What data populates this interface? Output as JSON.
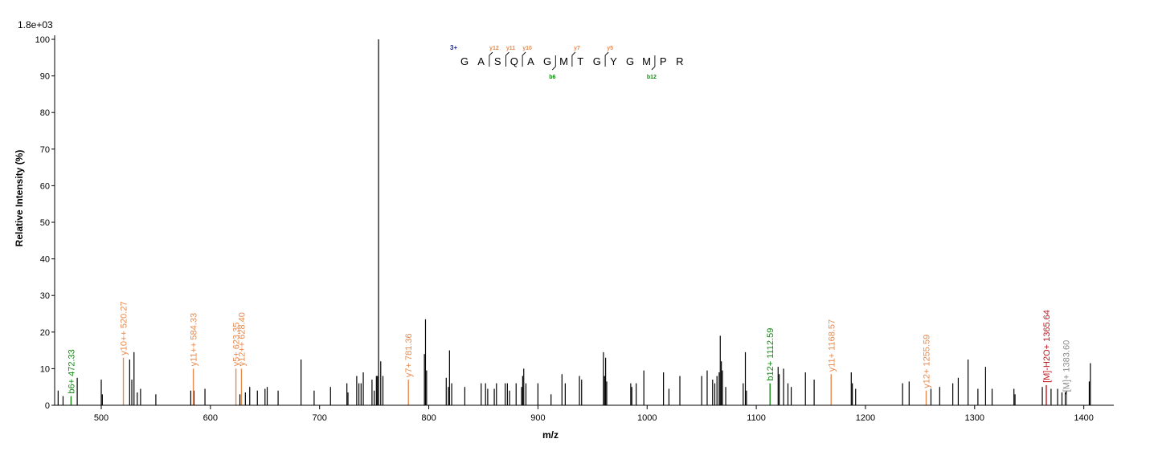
{
  "colors": {
    "b_ion": "#138a13",
    "y_ion": "#e88a4e",
    "precursor_loss": "#c0141c",
    "precursor": "#8c8c8c",
    "charge": "#1a2a9a",
    "peak": "#000000"
  },
  "chart_data": {
    "type": "bar",
    "intensity_scale": "1.8e+03",
    "xlabel": "m/z",
    "ylabel": "Relative   Intensity (%)",
    "xlim": [
      460,
      1430
    ],
    "ylim": [
      0,
      100
    ],
    "xticks": [
      500,
      600,
      700,
      800,
      900,
      1000,
      1100,
      1200,
      1300,
      1400
    ],
    "yticks": [
      0,
      10,
      20,
      30,
      40,
      50,
      60,
      70,
      80,
      90,
      100
    ],
    "peaks": [
      [
        460.5,
        4
      ],
      [
        465,
        2.5
      ],
      [
        478,
        7.5
      ],
      [
        500,
        7
      ],
      [
        501,
        3
      ],
      [
        526,
        12.5
      ],
      [
        528,
        7
      ],
      [
        530,
        14.5
      ],
      [
        533,
        3.5
      ],
      [
        536,
        4.5
      ],
      [
        550,
        3
      ],
      [
        582,
        4
      ],
      [
        585,
        4
      ],
      [
        595,
        4.5
      ],
      [
        627,
        3
      ],
      [
        632,
        3.5
      ],
      [
        636,
        5
      ],
      [
        643,
        4
      ],
      [
        650,
        4.5
      ],
      [
        652,
        5
      ],
      [
        662,
        4
      ],
      [
        683,
        12.5
      ],
      [
        695,
        4
      ],
      [
        710,
        5
      ],
      [
        725,
        6
      ],
      [
        726,
        3.5
      ],
      [
        734,
        8
      ],
      [
        736,
        6
      ],
      [
        738,
        6
      ],
      [
        740,
        9
      ],
      [
        748,
        7
      ],
      [
        750,
        4
      ],
      [
        752,
        8
      ],
      [
        753,
        8
      ],
      [
        754,
        100
      ],
      [
        756,
        12
      ],
      [
        758,
        8
      ],
      [
        796,
        14
      ],
      [
        797,
        23.5
      ],
      [
        798,
        9.5
      ],
      [
        816,
        7.5
      ],
      [
        818,
        5
      ],
      [
        819,
        15
      ],
      [
        821,
        6
      ],
      [
        833,
        5
      ],
      [
        848,
        6
      ],
      [
        852,
        6
      ],
      [
        854,
        4.5
      ],
      [
        860,
        4.5
      ],
      [
        862,
        6
      ],
      [
        870,
        6
      ],
      [
        872,
        6
      ],
      [
        874,
        4
      ],
      [
        880,
        6
      ],
      [
        885,
        5
      ],
      [
        886,
        8
      ],
      [
        887,
        10
      ],
      [
        889,
        6
      ],
      [
        900,
        6
      ],
      [
        912,
        3
      ],
      [
        922,
        8.5
      ],
      [
        925,
        6
      ],
      [
        938,
        8
      ],
      [
        940,
        7
      ],
      [
        960,
        14.5
      ],
      [
        961,
        8
      ],
      [
        962,
        13
      ],
      [
        963,
        6.5
      ],
      [
        985,
        6
      ],
      [
        986,
        5
      ],
      [
        990,
        6
      ],
      [
        997,
        9.5
      ],
      [
        1015,
        9
      ],
      [
        1020,
        4.5
      ],
      [
        1030,
        8
      ],
      [
        1050,
        8
      ],
      [
        1055,
        9.5
      ],
      [
        1060,
        7
      ],
      [
        1062,
        6
      ],
      [
        1064,
        8
      ],
      [
        1066,
        9
      ],
      [
        1067,
        19
      ],
      [
        1068,
        12
      ],
      [
        1069,
        9.5
      ],
      [
        1072,
        5
      ],
      [
        1088,
        6
      ],
      [
        1090,
        14.5
      ],
      [
        1091,
        4
      ],
      [
        1120,
        10.5
      ],
      [
        1121,
        8.5
      ],
      [
        1125,
        10
      ],
      [
        1129,
        6
      ],
      [
        1132,
        5
      ],
      [
        1145,
        9
      ],
      [
        1153,
        7
      ],
      [
        1187,
        9
      ],
      [
        1188,
        6
      ],
      [
        1191,
        4.5
      ],
      [
        1234,
        6
      ],
      [
        1240,
        6.5
      ],
      [
        1260,
        4.5
      ],
      [
        1268,
        5
      ],
      [
        1280,
        6
      ],
      [
        1285,
        7.5
      ],
      [
        1294,
        12.5
      ],
      [
        1303,
        4.5
      ],
      [
        1310,
        10.5
      ],
      [
        1316,
        4.5
      ],
      [
        1336,
        4.5
      ],
      [
        1337,
        3
      ],
      [
        1362,
        5
      ],
      [
        1370,
        4.5
      ],
      [
        1376,
        4.5
      ],
      [
        1380,
        3.5
      ],
      [
        1383,
        3.5
      ],
      [
        1384,
        4
      ],
      [
        1405,
        6.5
      ],
      [
        1406,
        11.5
      ]
    ],
    "annotated_peaks": [
      {
        "mz": 472.33,
        "intensity": 2.5,
        "ion": "b",
        "label": "b6+ 472.33"
      },
      {
        "mz": 520.27,
        "intensity": 13,
        "ion": "y",
        "label": "y10++ 520.27"
      },
      {
        "mz": 584.33,
        "intensity": 10,
        "ion": "y",
        "label": "y11++ 584.33"
      },
      {
        "mz": 623.35,
        "intensity": 10,
        "ion": "y",
        "label": "y5+ 623.35"
      },
      {
        "mz": 628.4,
        "intensity": 10,
        "ion": "y",
        "label": "y12++ 628.40"
      },
      {
        "mz": 781.36,
        "intensity": 7,
        "ion": "y",
        "label": "y7+ 781.36"
      },
      {
        "mz": 1112.59,
        "intensity": 6,
        "ion": "b",
        "label": "b12+ 1112.59"
      },
      {
        "mz": 1168.57,
        "intensity": 8.5,
        "ion": "y",
        "label": "y11+ 1168.57"
      },
      {
        "mz": 1255.59,
        "intensity": 4,
        "ion": "y",
        "label": "y12+ 1255.59"
      },
      {
        "mz": 1365.64,
        "intensity": 5.5,
        "ion": "precursor_loss",
        "label": "[M]-H2O+ 1365.64"
      },
      {
        "mz": 1383.6,
        "intensity": 3,
        "ion": "precursor",
        "label": "[M]+ 1383.60"
      }
    ],
    "sequence": {
      "charge": "3+",
      "residues": [
        "G",
        "A",
        "S",
        "Q",
        "A",
        "G",
        "M",
        "T",
        "G",
        "Y",
        "G",
        "M",
        "P",
        "R"
      ],
      "y_fragments": [
        {
          "after_residue": 2,
          "label": "y12"
        },
        {
          "after_residue": 3,
          "label": "y11"
        },
        {
          "after_residue": 4,
          "label": "y10"
        },
        {
          "after_residue": 7,
          "label": "y7"
        },
        {
          "after_residue": 9,
          "label": "y5"
        }
      ],
      "b_fragments": [
        {
          "after_residue": 6,
          "label": "b6"
        },
        {
          "after_residue": 12,
          "label": "b12"
        }
      ]
    }
  }
}
